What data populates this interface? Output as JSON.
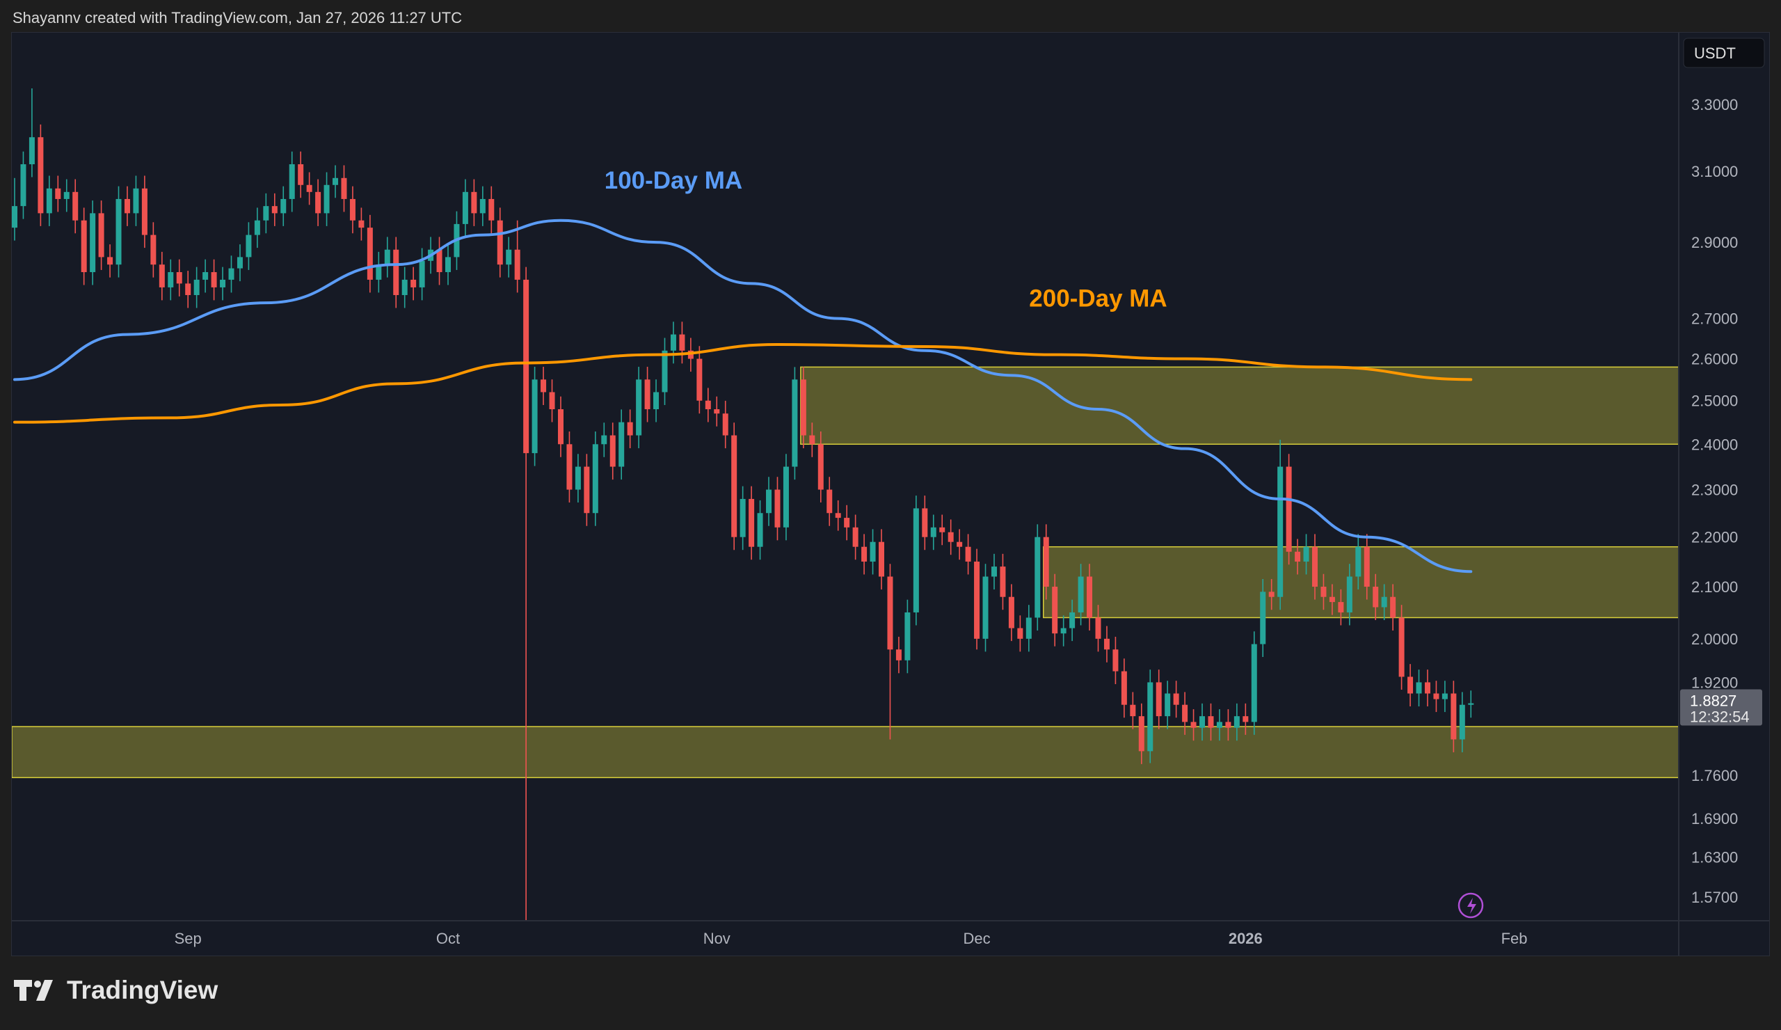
{
  "header": {
    "attribution": "Shayannv created with TradingView.com, Jan 27, 2026 11:27 UTC"
  },
  "logo": {
    "text": "TradingView"
  },
  "chart_data": {
    "type": "candlestick",
    "interval": "1D",
    "x_start": "2025-08-12",
    "currency": "USDT",
    "y_scale": "log",
    "ylim": [
      1.54,
      3.42
    ],
    "grid": false,
    "price_ticks": [
      "3.3000",
      "3.1000",
      "2.9000",
      "2.7000",
      "2.6000",
      "2.5000",
      "2.4000",
      "2.3000",
      "2.2000",
      "2.1000",
      "2.0000",
      "1.9200",
      "1.7600",
      "1.6900",
      "1.6300",
      "1.5700"
    ],
    "time_ticks": [
      {
        "label": "Sep",
        "date": "2025-09-01"
      },
      {
        "label": "Oct",
        "date": "2025-10-01"
      },
      {
        "label": "Nov",
        "date": "2025-11-01"
      },
      {
        "label": "Dec",
        "date": "2025-12-01"
      },
      {
        "label": "2026",
        "date": "2026-01-01",
        "bold": true
      },
      {
        "label": "Feb",
        "date": "2026-02-01"
      }
    ],
    "closes": [
      3.0,
      3.12,
      3.2,
      2.98,
      3.05,
      3.02,
      3.04,
      2.96,
      2.82,
      2.98,
      2.86,
      2.84,
      3.02,
      2.98,
      3.05,
      2.92,
      2.84,
      2.78,
      2.82,
      2.79,
      2.76,
      2.8,
      2.82,
      2.78,
      2.8,
      2.83,
      2.86,
      2.92,
      2.96,
      3.0,
      2.98,
      3.02,
      3.12,
      3.06,
      3.04,
      2.98,
      3.06,
      3.08,
      3.02,
      2.96,
      2.94,
      2.8,
      2.84,
      2.88,
      2.76,
      2.8,
      2.78,
      2.85,
      2.88,
      2.82,
      2.86,
      2.95,
      3.04,
      2.98,
      3.02,
      2.96,
      2.84,
      2.88,
      2.8,
      2.38,
      2.55,
      2.52,
      2.48,
      2.4,
      2.3,
      2.35,
      2.25,
      2.4,
      2.42,
      2.35,
      2.45,
      2.42,
      2.55,
      2.48,
      2.52,
      2.62,
      2.66,
      2.62,
      2.6,
      2.5,
      2.48,
      2.47,
      2.42,
      2.2,
      2.28,
      2.18,
      2.25,
      2.3,
      2.22,
      2.35,
      2.55,
      2.42,
      2.4,
      2.3,
      2.25,
      2.24,
      2.22,
      2.18,
      2.15,
      2.19,
      2.12,
      1.98,
      1.96,
      2.05,
      2.26,
      2.2,
      2.22,
      2.21,
      2.19,
      2.18,
      2.15,
      2.0,
      2.12,
      2.14,
      2.08,
      2.02,
      2.0,
      2.04,
      2.2,
      2.1,
      2.01,
      2.02,
      2.05,
      2.12,
      2.04,
      2.0,
      1.98,
      1.94,
      1.88,
      1.86,
      1.8,
      1.92,
      1.86,
      1.9,
      1.88,
      1.85,
      1.84,
      1.86,
      1.84,
      1.85,
      1.84,
      1.86,
      1.85,
      1.99,
      2.09,
      2.08,
      2.35,
      2.17,
      2.15,
      2.18,
      2.1,
      2.08,
      2.07,
      2.05,
      2.12,
      2.18,
      2.1,
      2.06,
      2.08,
      2.04,
      1.93,
      1.9,
      1.92,
      1.9,
      1.89,
      1.9,
      1.82,
      1.88,
      1.8827
    ],
    "wick_extremes": {
      "low": {
        "59": 1.55,
        "101": 1.82,
        "131": 1.78,
        "111": 1.98
      },
      "high": {
        "2": 3.35,
        "58": 2.96,
        "90": 2.58,
        "146": 2.41,
        "0": 3.08
      }
    },
    "series": [
      {
        "name": "100-Day MA",
        "color": "#5b9cf6",
        "points": [
          [
            "2025-08-12",
            2.55
          ],
          [
            "2025-08-25",
            2.66
          ],
          [
            "2025-09-10",
            2.74
          ],
          [
            "2025-09-25",
            2.84
          ],
          [
            "2025-10-05",
            2.92
          ],
          [
            "2025-10-14",
            2.96
          ],
          [
            "2025-10-25",
            2.9
          ],
          [
            "2025-11-05",
            2.79
          ],
          [
            "2025-11-15",
            2.7
          ],
          [
            "2025-11-25",
            2.62
          ],
          [
            "2025-12-05",
            2.56
          ],
          [
            "2025-12-15",
            2.48
          ],
          [
            "2025-12-25",
            2.39
          ],
          [
            "2026-01-05",
            2.28
          ],
          [
            "2026-01-15",
            2.2
          ],
          [
            "2026-01-27",
            2.13
          ]
        ]
      },
      {
        "name": "200-Day MA",
        "color": "#ff9800",
        "points": [
          [
            "2025-08-12",
            2.45
          ],
          [
            "2025-08-30",
            2.46
          ],
          [
            "2025-09-12",
            2.49
          ],
          [
            "2025-09-25",
            2.54
          ],
          [
            "2025-10-10",
            2.59
          ],
          [
            "2025-10-25",
            2.61
          ],
          [
            "2025-11-08",
            2.635
          ],
          [
            "2025-11-25",
            2.63
          ],
          [
            "2025-12-10",
            2.61
          ],
          [
            "2025-12-25",
            2.6
          ],
          [
            "2026-01-10",
            2.58
          ],
          [
            "2026-01-27",
            2.55
          ]
        ]
      }
    ],
    "zones": [
      {
        "from": "2025-11-11",
        "top": 2.58,
        "bottom": 2.4
      },
      {
        "from": "2025-12-09",
        "top": 2.18,
        "bottom": 2.04
      },
      {
        "from": "2025-08-12",
        "top": 1.842,
        "bottom": 1.756
      }
    ],
    "annotations": [
      {
        "text": "100-Day MA",
        "color": "#5b9cf6",
        "date": "2025-10-27",
        "price": 3.05
      },
      {
        "text": "200-Day MA",
        "color": "#ff9800",
        "date": "2025-12-15",
        "price": 2.73
      }
    ],
    "last_price": "1.8827",
    "countdown": "12:32:54",
    "colors": {
      "up": "#26a69a",
      "down": "#ef5350",
      "zone_fill": "#6b6a30",
      "zone_line": "#d8cf3a",
      "background": "#161a25"
    }
  }
}
